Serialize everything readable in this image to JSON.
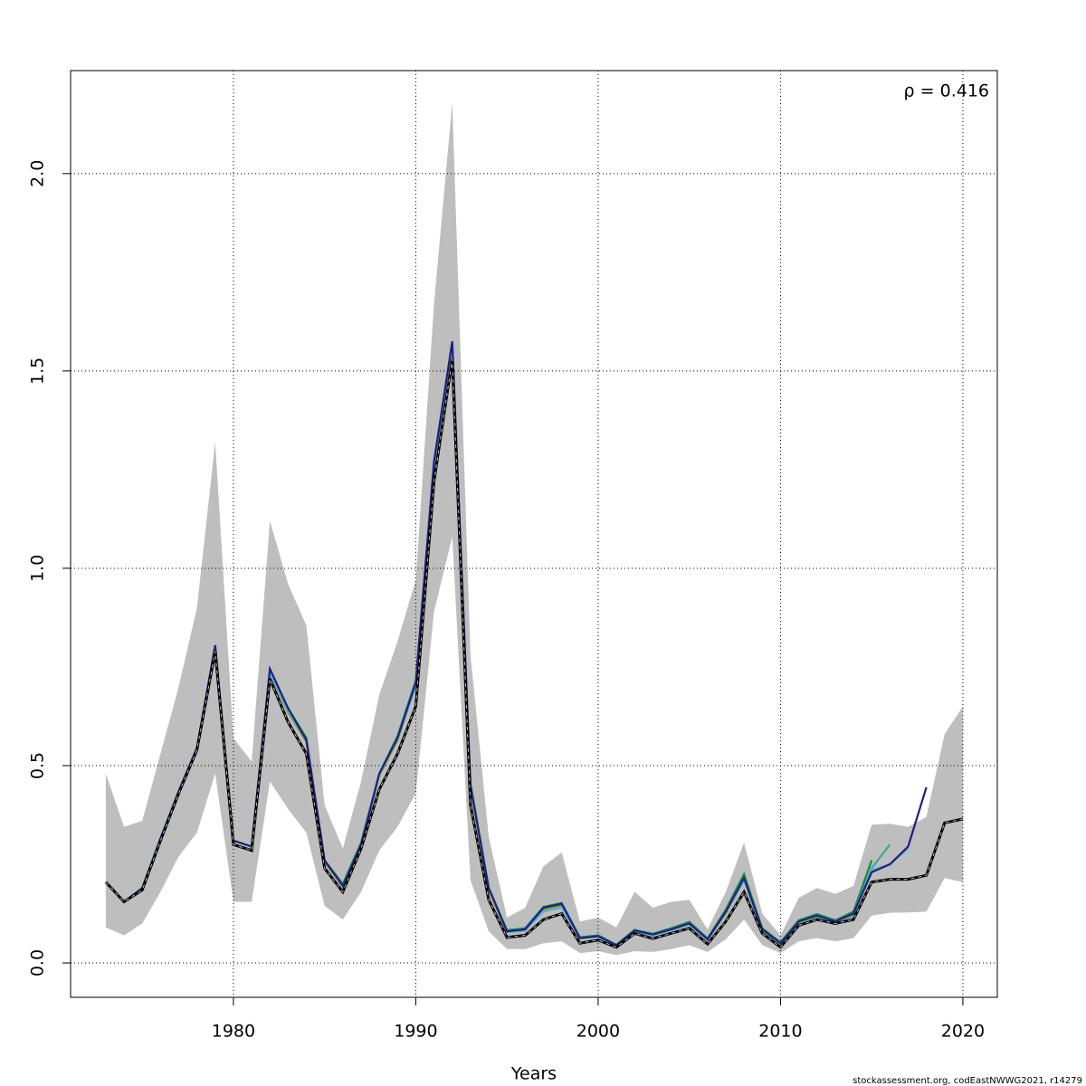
{
  "chart_data": {
    "type": "line",
    "xlabel": "Years",
    "annotation": "ρ = 0.416",
    "footer": "stockassessment.org, codEastNWWG2021, r14279",
    "xlim": [
      1971.07,
      2021.89
    ],
    "ylim": [
      -0.087,
      2.261
    ],
    "xticks": [
      1980,
      1990,
      2000,
      2010,
      2020
    ],
    "yticks": [
      {
        "value": 0,
        "label": "0.0"
      },
      0.5,
      {
        "value": 1,
        "label": "1.0"
      },
      1.5,
      {
        "value": 2,
        "label": "2.0"
      }
    ],
    "grid": true,
    "x": [
      1973,
      1974,
      1975,
      1976,
      1977,
      1978,
      1979,
      1980,
      1981,
      1982,
      1983,
      1984,
      1985,
      1986,
      1987,
      1988,
      1989,
      1990,
      1991,
      1992,
      1993,
      1994,
      1995,
      1996,
      1997,
      1998,
      1999,
      2000,
      2001,
      2002,
      2003,
      2004,
      2005,
      2006,
      2007,
      2008,
      2009,
      2010,
      2011,
      2012,
      2013,
      2014,
      2015,
      2016,
      2017,
      2018,
      2019,
      2020
    ],
    "band": {
      "color": "#bebebe",
      "lower": [
        0.09,
        0.07,
        0.1,
        0.18,
        0.27,
        0.33,
        0.48,
        0.155,
        0.155,
        0.46,
        0.39,
        0.33,
        0.145,
        0.11,
        0.18,
        0.285,
        0.345,
        0.43,
        0.89,
        1.08,
        0.21,
        0.08,
        0.035,
        0.035,
        0.05,
        0.055,
        0.025,
        0.03,
        0.02,
        0.03,
        0.028,
        0.035,
        0.045,
        0.028,
        0.06,
        0.11,
        0.045,
        0.025,
        0.055,
        0.063,
        0.055,
        0.063,
        0.12,
        0.127,
        0.128,
        0.13,
        0.215,
        0.205
      ],
      "upper": [
        0.48,
        0.345,
        0.36,
        0.53,
        0.7,
        0.9,
        1.32,
        0.57,
        0.51,
        1.12,
        0.96,
        0.855,
        0.4,
        0.29,
        0.46,
        0.68,
        0.815,
        0.97,
        1.67,
        2.18,
        0.78,
        0.32,
        0.115,
        0.14,
        0.245,
        0.28,
        0.105,
        0.115,
        0.09,
        0.18,
        0.14,
        0.155,
        0.16,
        0.085,
        0.18,
        0.305,
        0.125,
        0.07,
        0.165,
        0.19,
        0.175,
        0.195,
        0.35,
        0.353,
        0.345,
        0.37,
        0.58,
        0.65
      ]
    },
    "series": [
      {
        "color": "#8c9a1e",
        "values": [
          0.205,
          0.155,
          0.19,
          0.315,
          0.435,
          0.545,
          0.795,
          0.31,
          0.295,
          0.73,
          0.635,
          0.56,
          0.255,
          0.195,
          0.3,
          0.475,
          0.565,
          0.705,
          1.26,
          1.55,
          0.445,
          0.185,
          0.078,
          0.082,
          0.135,
          0.145,
          0.062,
          0.066,
          0.044,
          0.08,
          0.07,
          0.083,
          0.098,
          0.058,
          0.125,
          0.21,
          0.082,
          0.048,
          0.1,
          0.115,
          0.1,
          0.12,
          null,
          null,
          null,
          null,
          null,
          null
        ]
      },
      {
        "color": "#138a3a",
        "values": [
          0.205,
          0.155,
          0.19,
          0.315,
          0.435,
          0.545,
          0.8,
          0.31,
          0.295,
          0.735,
          0.645,
          0.57,
          0.26,
          0.2,
          0.305,
          0.48,
          0.575,
          0.715,
          1.27,
          1.56,
          0.455,
          0.19,
          0.083,
          0.088,
          0.142,
          0.152,
          0.065,
          0.07,
          0.046,
          0.084,
          0.074,
          0.088,
          0.104,
          0.062,
          0.135,
          0.225,
          0.088,
          0.052,
          0.108,
          0.124,
          0.108,
          0.13,
          0.26,
          null,
          null,
          null,
          null,
          null
        ]
      },
      {
        "color": "#3aa89a",
        "values": [
          0.205,
          0.155,
          0.19,
          0.315,
          0.435,
          0.545,
          0.8,
          0.31,
          0.295,
          0.735,
          0.64,
          0.565,
          0.26,
          0.195,
          0.3,
          0.48,
          0.57,
          0.71,
          1.27,
          1.56,
          0.45,
          0.19,
          0.08,
          0.085,
          0.14,
          0.15,
          0.063,
          0.068,
          0.045,
          0.082,
          0.072,
          0.085,
          0.1,
          0.06,
          0.13,
          0.215,
          0.085,
          0.05,
          0.105,
          0.12,
          0.105,
          0.125,
          0.24,
          0.3,
          null,
          null,
          null,
          null
        ]
      },
      {
        "color": "#5ab4e6",
        "values": [
          0.205,
          0.155,
          0.19,
          0.315,
          0.435,
          0.545,
          0.8,
          0.31,
          0.295,
          0.735,
          0.64,
          0.565,
          0.26,
          0.195,
          0.3,
          0.48,
          0.57,
          0.7,
          1.265,
          1.56,
          0.45,
          0.19,
          0.078,
          0.082,
          0.13,
          0.14,
          0.062,
          0.066,
          0.044,
          0.08,
          0.07,
          0.083,
          0.098,
          0.058,
          0.128,
          0.21,
          0.083,
          0.049,
          0.103,
          0.118,
          0.103,
          0.122,
          0.235,
          0.25,
          0.29,
          null,
          null,
          null
        ]
      },
      {
        "color": "#1f1f80",
        "values": [
          0.205,
          0.155,
          0.19,
          0.315,
          0.435,
          0.545,
          0.805,
          0.31,
          0.295,
          0.745,
          0.645,
          0.565,
          0.26,
          0.195,
          0.3,
          0.48,
          0.57,
          0.71,
          1.27,
          1.575,
          0.45,
          0.19,
          0.08,
          0.085,
          0.14,
          0.15,
          0.063,
          0.068,
          0.045,
          0.082,
          0.072,
          0.085,
          0.1,
          0.06,
          0.13,
          0.215,
          0.085,
          0.05,
          0.105,
          0.12,
          0.105,
          0.125,
          0.23,
          0.25,
          0.295,
          0.445,
          null,
          null
        ]
      },
      {
        "color": "#000000",
        "values": [
          0.205,
          0.155,
          0.185,
          0.31,
          0.43,
          0.54,
          0.79,
          0.3,
          0.285,
          0.72,
          0.61,
          0.53,
          0.24,
          0.18,
          0.29,
          0.44,
          0.53,
          0.65,
          1.22,
          1.53,
          0.4,
          0.16,
          0.065,
          0.07,
          0.11,
          0.125,
          0.05,
          0.058,
          0.04,
          0.075,
          0.062,
          0.075,
          0.088,
          0.048,
          0.105,
          0.18,
          0.075,
          0.04,
          0.095,
          0.11,
          0.1,
          0.11,
          0.205,
          0.212,
          0.212,
          0.222,
          0.355,
          0.365
        ]
      }
    ]
  }
}
